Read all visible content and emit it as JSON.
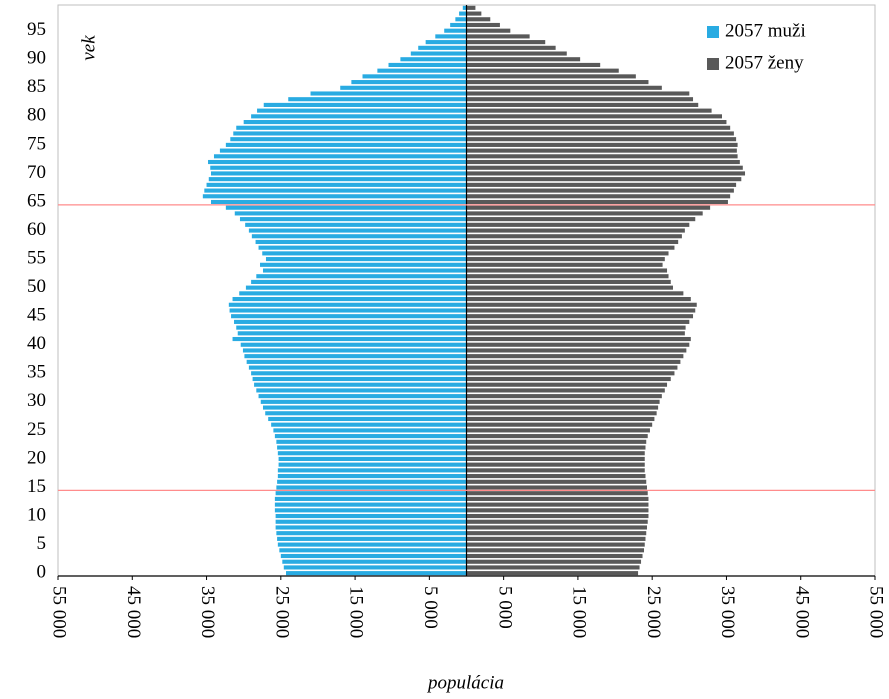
{
  "chart_data": {
    "type": "pyramid",
    "x_label": "populácia",
    "y_label": "vek",
    "y": [
      0,
      1,
      2,
      3,
      4,
      5,
      6,
      7,
      8,
      9,
      10,
      11,
      12,
      13,
      14,
      15,
      16,
      17,
      18,
      19,
      20,
      21,
      22,
      23,
      24,
      25,
      26,
      27,
      28,
      29,
      30,
      31,
      32,
      33,
      34,
      35,
      36,
      37,
      38,
      39,
      40,
      41,
      42,
      43,
      44,
      45,
      46,
      47,
      48,
      49,
      50,
      51,
      52,
      53,
      54,
      55,
      56,
      57,
      58,
      59,
      60,
      61,
      62,
      63,
      64,
      65,
      66,
      67,
      68,
      69,
      70,
      71,
      72,
      73,
      74,
      75,
      76,
      77,
      78,
      79,
      80,
      81,
      82,
      83,
      84,
      85,
      86,
      87,
      88,
      89,
      90,
      91,
      92,
      93,
      94,
      95,
      96,
      97,
      98,
      99
    ],
    "series": [
      {
        "name": "2057 muži",
        "color": "#29abe2",
        "values": [
          -24300,
          -24600,
          -24800,
          -25000,
          -25200,
          -25400,
          -25500,
          -25600,
          -25700,
          -25700,
          -25700,
          -25800,
          -25800,
          -25800,
          -25700,
          -25600,
          -25500,
          -25400,
          -25400,
          -25300,
          -25300,
          -25400,
          -25500,
          -25600,
          -25800,
          -26000,
          -26300,
          -26700,
          -27100,
          -27400,
          -27700,
          -28000,
          -28300,
          -28600,
          -28800,
          -29000,
          -29300,
          -29600,
          -29900,
          -30100,
          -30400,
          -31500,
          -30800,
          -31000,
          -31300,
          -31700,
          -31900,
          -32000,
          -31500,
          -30600,
          -29700,
          -29000,
          -28300,
          -27400,
          -27800,
          -27000,
          -27500,
          -28000,
          -28400,
          -28900,
          -29300,
          -29800,
          -30500,
          -31200,
          -32400,
          -34400,
          -35500,
          -35300,
          -35000,
          -34700,
          -34400,
          -34500,
          -34800,
          -34000,
          -33200,
          -32400,
          -31800,
          -31400,
          -31000,
          -30000,
          -29000,
          -28200,
          -27300,
          -24000,
          -21000,
          -17000,
          -15500,
          -14000,
          -12000,
          -10500,
          -8900,
          -7500,
          -6500,
          -5500,
          -4200,
          -3000,
          -2200,
          -1500,
          -1000,
          -500
        ]
      },
      {
        "name": "2057 ženy",
        "color": "#595959",
        "values": [
          23100,
          23300,
          23500,
          23700,
          23900,
          24000,
          24100,
          24200,
          24300,
          24400,
          24500,
          24500,
          24500,
          24500,
          24400,
          24300,
          24200,
          24100,
          24000,
          24000,
          24000,
          24000,
          24100,
          24200,
          24400,
          24700,
          25000,
          25300,
          25600,
          25800,
          26000,
          26300,
          26700,
          27000,
          27500,
          28000,
          28400,
          28800,
          29200,
          29600,
          30000,
          30200,
          29400,
          29500,
          30000,
          30500,
          30800,
          31000,
          30200,
          29200,
          27800,
          27500,
          27200,
          27000,
          26400,
          26700,
          27200,
          28000,
          28500,
          29000,
          29400,
          30000,
          30800,
          31800,
          32800,
          35200,
          35500,
          36000,
          36300,
          37000,
          37500,
          37200,
          36800,
          36500,
          36400,
          36500,
          36300,
          36000,
          35500,
          35000,
          34400,
          33000,
          31200,
          30500,
          30000,
          26300,
          24500,
          22800,
          20500,
          18000,
          15300,
          13500,
          12000,
          10600,
          8500,
          5900,
          4500,
          3200,
          2000,
          1200
        ]
      }
    ],
    "xlim": [
      -55000,
      55000
    ],
    "xticks": [
      {
        "value": -55000,
        "label": "55 000"
      },
      {
        "value": -45000,
        "label": "45 000"
      },
      {
        "value": -35000,
        "label": "35 000"
      },
      {
        "value": -25000,
        "label": "25 000"
      },
      {
        "value": -15000,
        "label": "15 000"
      },
      {
        "value": -5000,
        "label": "5 000"
      },
      {
        "value": 5000,
        "label": "5 000"
      },
      {
        "value": 15000,
        "label": "15 000"
      },
      {
        "value": 25000,
        "label": "25 000"
      },
      {
        "value": 35000,
        "label": "35 000"
      },
      {
        "value": 45000,
        "label": "45 000"
      },
      {
        "value": 55000,
        "label": "55 000"
      }
    ],
    "ylim": [
      -0.5,
      99.5
    ],
    "yticks": [
      0,
      5,
      10,
      15,
      20,
      25,
      30,
      35,
      40,
      45,
      50,
      55,
      60,
      65,
      70,
      75,
      80,
      85,
      90,
      95
    ],
    "reference_lines": [
      14.5,
      64.5
    ],
    "reference_color": "#ff8c8c",
    "legend": "upper right"
  }
}
